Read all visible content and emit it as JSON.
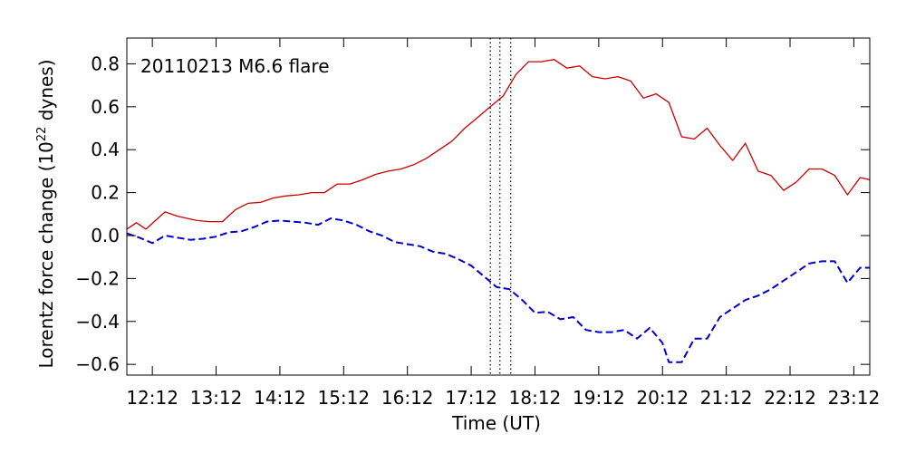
{
  "chart_data": {
    "type": "line",
    "annotation": "20110213 M6.6 flare",
    "xlabel": "Time (UT)",
    "ylabel": "Lorentz force change (10",
    "ylabel_exponent": "22",
    "ylabel_suffix": " dynes)",
    "x_unit": "hours UT",
    "xlim": [
      11.8,
      23.45
    ],
    "ylim": [
      -0.65,
      0.92
    ],
    "x_ticks": [
      {
        "value": 12.2,
        "label": "12:12"
      },
      {
        "value": 13.2,
        "label": "13:12"
      },
      {
        "value": 14.2,
        "label": "14:12"
      },
      {
        "value": 15.2,
        "label": "15:12"
      },
      {
        "value": 16.2,
        "label": "16:12"
      },
      {
        "value": 17.2,
        "label": "17:12"
      },
      {
        "value": 18.2,
        "label": "18:12"
      },
      {
        "value": 19.2,
        "label": "19:12"
      },
      {
        "value": 20.2,
        "label": "20:12"
      },
      {
        "value": 21.2,
        "label": "21:12"
      },
      {
        "value": 22.2,
        "label": "22:12"
      },
      {
        "value": 23.2,
        "label": "23:12"
      }
    ],
    "y_ticks": [
      {
        "value": 0.8,
        "label": "0.8"
      },
      {
        "value": 0.6,
        "label": "0.6"
      },
      {
        "value": 0.4,
        "label": "0.4"
      },
      {
        "value": 0.2,
        "label": "0.2"
      },
      {
        "value": 0.0,
        "label": "0.0"
      },
      {
        "value": -0.2,
        "label": "−0.2"
      },
      {
        "value": -0.4,
        "label": "−0.4"
      },
      {
        "value": -0.6,
        "label": "−0.6"
      }
    ],
    "vertical_markers": [
      17.5,
      17.65,
      17.82
    ],
    "grid": false,
    "series": [
      {
        "color": "#cc0000",
        "style": "solid",
        "x": [
          11.8,
          11.95,
          12.1,
          12.4,
          12.6,
          12.9,
          13.1,
          13.3,
          13.5,
          13.7,
          13.9,
          14.1,
          14.3,
          14.5,
          14.7,
          14.9,
          15.1,
          15.3,
          15.5,
          15.7,
          15.9,
          16.1,
          16.3,
          16.5,
          16.7,
          16.9,
          17.1,
          17.3,
          17.5,
          17.7,
          17.9,
          18.1,
          18.3,
          18.5,
          18.7,
          18.9,
          19.1,
          19.3,
          19.5,
          19.7,
          19.9,
          20.1,
          20.3,
          20.5,
          20.7,
          20.9,
          21.1,
          21.3,
          21.5,
          21.7,
          21.9,
          22.1,
          22.3,
          22.5,
          22.7,
          22.9,
          23.1,
          23.3,
          23.45
        ],
        "values": [
          0.03,
          0.06,
          0.03,
          0.11,
          0.09,
          0.07,
          0.065,
          0.065,
          0.12,
          0.15,
          0.155,
          0.175,
          0.185,
          0.19,
          0.2,
          0.2,
          0.24,
          0.24,
          0.26,
          0.285,
          0.3,
          0.31,
          0.33,
          0.36,
          0.4,
          0.44,
          0.5,
          0.55,
          0.6,
          0.65,
          0.75,
          0.81,
          0.81,
          0.82,
          0.78,
          0.79,
          0.74,
          0.73,
          0.74,
          0.72,
          0.64,
          0.66,
          0.62,
          0.46,
          0.45,
          0.5,
          0.42,
          0.35,
          0.43,
          0.3,
          0.28,
          0.21,
          0.25,
          0.31,
          0.31,
          0.28,
          0.19,
          0.27,
          0.26
        ]
      },
      {
        "color": "#0000cc",
        "style": "dashed",
        "x": [
          11.8,
          12.0,
          12.2,
          12.4,
          12.6,
          12.8,
          13.0,
          13.2,
          13.4,
          13.6,
          13.8,
          14.0,
          14.2,
          14.4,
          14.6,
          14.8,
          15.0,
          15.2,
          15.4,
          15.6,
          15.8,
          16.0,
          16.2,
          16.4,
          16.6,
          16.8,
          17.0,
          17.2,
          17.4,
          17.6,
          17.8,
          18.0,
          18.2,
          18.4,
          18.6,
          18.8,
          19.0,
          19.2,
          19.4,
          19.6,
          19.8,
          20.0,
          20.2,
          20.3,
          20.5,
          20.7,
          20.9,
          21.1,
          21.3,
          21.5,
          21.7,
          21.9,
          22.1,
          22.3,
          22.5,
          22.7,
          22.9,
          23.1,
          23.3,
          23.45
        ],
        "values": [
          0.01,
          -0.01,
          -0.035,
          0.0,
          -0.01,
          -0.02,
          -0.015,
          -0.005,
          0.015,
          0.02,
          0.04,
          0.065,
          0.07,
          0.065,
          0.06,
          0.05,
          0.08,
          0.07,
          0.05,
          0.02,
          0.0,
          -0.03,
          -0.04,
          -0.05,
          -0.075,
          -0.085,
          -0.11,
          -0.14,
          -0.19,
          -0.24,
          -0.25,
          -0.3,
          -0.36,
          -0.355,
          -0.39,
          -0.38,
          -0.44,
          -0.45,
          -0.45,
          -0.44,
          -0.48,
          -0.43,
          -0.5,
          -0.59,
          -0.59,
          -0.48,
          -0.48,
          -0.38,
          -0.34,
          -0.3,
          -0.28,
          -0.25,
          -0.21,
          -0.17,
          -0.13,
          -0.12,
          -0.12,
          -0.22,
          -0.15,
          -0.15
        ]
      }
    ]
  }
}
